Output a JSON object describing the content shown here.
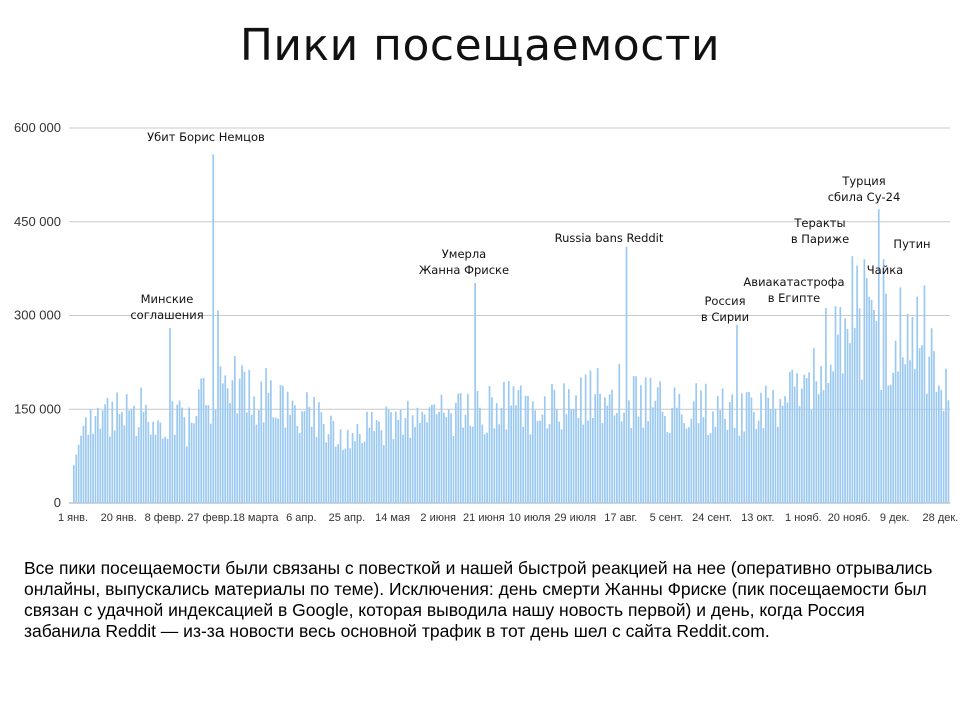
{
  "slide": {
    "title": "Пики посещаемости",
    "caption": "Все пики посещаемости были связаны с повесткой и нашей быстрой реакцией на нее (оперативно отрывались онлайны, выпускались материалы по теме). Исключения: день смерти Жанны Фриске (пик посещаемости был связан с удачной индексацией в Google, которая выводила нашу новость первой) и день, когда Россия забанила Reddit — из-за новости весь основной трафик в тот день шел с сайта Reddit.com."
  },
  "chart_data": {
    "type": "bar",
    "title": "",
    "xlabel": "",
    "ylabel": "",
    "ylim": [
      0,
      600000
    ],
    "yticks": [
      0,
      150000,
      300000,
      450000,
      600000
    ],
    "ytick_labels": [
      "0",
      "150 000",
      "300 000",
      "450 000",
      "600 000"
    ],
    "xtick_labels": [
      "1 янв.",
      "20 янв.",
      "8 февр.",
      "27 февр.",
      "18 марта",
      "6 апр.",
      "25 апр.",
      "14 мая",
      "2 июня",
      "21 июня",
      "10 июля",
      "29 июля",
      "17 авг.",
      "5 сент.",
      "24 сент.",
      "13 окт.",
      "1 нояб.",
      "20 нояб.",
      "9 дек.",
      "28 дек."
    ],
    "xtick_days": [
      1,
      20,
      39,
      58,
      77,
      96,
      115,
      134,
      153,
      172,
      191,
      210,
      229,
      248,
      267,
      286,
      305,
      324,
      343,
      362
    ],
    "days_in_year": 365,
    "baseline": {
      "days": [
        1,
        10,
        20,
        35,
        50,
        56,
        70,
        90,
        110,
        125,
        140,
        155,
        165,
        180,
        195,
        210,
        225,
        240,
        255,
        270,
        285,
        300,
        310,
        318,
        330,
        345,
        360,
        365
      ],
      "values": [
        80000,
        140000,
        155000,
        150000,
        130000,
        180000,
        195000,
        165000,
        120000,
        120000,
        135000,
        145000,
        150000,
        160000,
        160000,
        165000,
        185000,
        165000,
        160000,
        155000,
        155000,
        175000,
        210000,
        260000,
        270000,
        260000,
        240000,
        180000
      ]
    },
    "peaks": [
      {
        "day": 41,
        "value": 280000
      },
      {
        "day": 59,
        "value": 558000
      },
      {
        "day": 61,
        "value": 308000
      },
      {
        "day": 168,
        "value": 352000
      },
      {
        "day": 231,
        "value": 410000
      },
      {
        "day": 277,
        "value": 285000
      },
      {
        "day": 314,
        "value": 312000
      },
      {
        "day": 325,
        "value": 395000
      },
      {
        "day": 327,
        "value": 380000
      },
      {
        "day": 330,
        "value": 390000
      },
      {
        "day": 331,
        "value": 360000
      },
      {
        "day": 336,
        "value": 470000
      },
      {
        "day": 338,
        "value": 390000
      },
      {
        "day": 339,
        "value": 335000
      },
      {
        "day": 345,
        "value": 345000
      },
      {
        "day": 352,
        "value": 330000
      },
      {
        "day": 355,
        "value": 348000
      }
    ],
    "annotations": [
      {
        "lines": [
          "Убит Борис Немцов"
        ],
        "day": 55
      },
      {
        "lines": [
          "Минские",
          "соглашения"
        ],
        "day": 41
      },
      {
        "lines": [
          "Умерла",
          "Жанна Фриске"
        ],
        "day": 166
      },
      {
        "lines": [
          "Russia bans Reddit"
        ],
        "day": 231
      },
      {
        "lines": [
          "Россия",
          "в Сирии"
        ],
        "day": 277
      },
      {
        "lines": [
          "Авиакатастрофа",
          "в Египте"
        ],
        "day": 311
      },
      {
        "lines": [
          "Теракты",
          "в Париже"
        ],
        "day": 323
      },
      {
        "lines": [
          "Турция",
          "сбила Су-24"
        ],
        "day": 339
      },
      {
        "lines": [
          "Чайка"
        ],
        "day": 345
      },
      {
        "lines": [
          "Путин"
        ],
        "day": 356
      }
    ],
    "colors": {
      "bar": "#9cc9f2",
      "bar_edge": "#6fb0ec",
      "grid": "#c9c9c9",
      "axis": "#aaaaaa"
    }
  }
}
